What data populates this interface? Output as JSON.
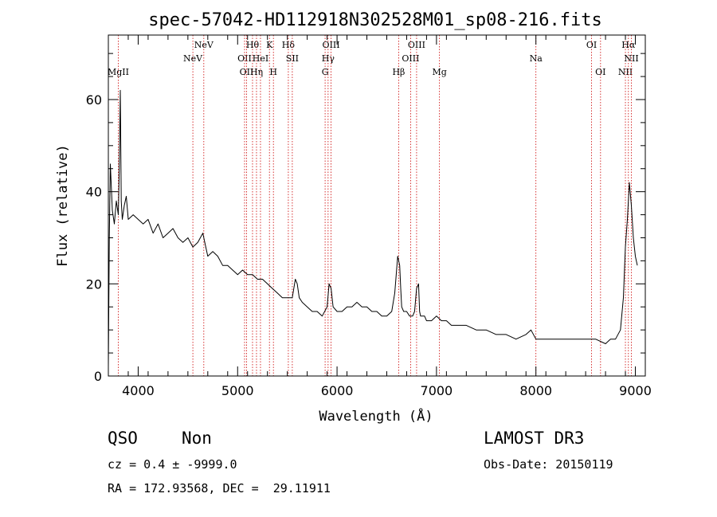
{
  "chart_data": {
    "type": "line",
    "title": "spec-57042-HD112918N302528M01_sp08-216.fits",
    "xlabel": "Wavelength (Å)",
    "ylabel": "Flux (relative)",
    "xlim": [
      3700,
      9100
    ],
    "ylim": [
      0,
      74
    ],
    "xticks": [
      4000,
      5000,
      6000,
      7000,
      8000,
      9000
    ],
    "yticks": [
      0,
      20,
      40,
      60
    ],
    "grid": false,
    "series": [
      {
        "x": [
          3700,
          3710,
          3720,
          3740,
          3760,
          3780,
          3800,
          3810,
          3820,
          3830,
          3840,
          3860,
          3880,
          3900,
          3950,
          4000,
          4050,
          4100,
          4150,
          4200,
          4250,
          4300,
          4350,
          4400,
          4450,
          4500,
          4550,
          4600,
          4650,
          4680,
          4700,
          4750,
          4800,
          4850,
          4900,
          4950,
          5000,
          5050,
          5100,
          5150,
          5200,
          5250,
          5300,
          5350,
          5400,
          5450,
          5500,
          5550,
          5580,
          5600,
          5620,
          5650,
          5700,
          5750,
          5800,
          5850,
          5900,
          5920,
          5940,
          5960,
          6000,
          6050,
          6100,
          6150,
          6200,
          6250,
          6300,
          6350,
          6400,
          6450,
          6500,
          6550,
          6580,
          6610,
          6630,
          6640,
          6650,
          6670,
          6700,
          6730,
          6760,
          6780,
          6800,
          6820,
          6830,
          6840,
          6860,
          6880,
          6900,
          6950,
          7000,
          7050,
          7100,
          7150,
          7200,
          7300,
          7400,
          7500,
          7600,
          7700,
          7800,
          7900,
          7950,
          8000,
          8050,
          8100,
          8200,
          8300,
          8400,
          8500,
          8600,
          8700,
          8750,
          8800,
          8850,
          8880,
          8900,
          8920,
          8940,
          8960,
          8980,
          9000,
          9020
        ],
        "y": [
          2,
          30,
          46,
          36,
          33,
          38,
          35,
          45,
          62,
          38,
          34,
          37,
          39,
          34,
          35,
          34,
          33,
          34,
          31,
          33,
          30,
          31,
          32,
          30,
          29,
          30,
          28,
          29,
          31,
          28,
          26,
          27,
          26,
          24,
          24,
          23,
          22,
          23,
          22,
          22,
          21,
          21,
          20,
          19,
          18,
          17,
          17,
          17,
          21,
          20,
          17,
          16,
          15,
          14,
          14,
          13,
          15,
          20,
          19,
          15,
          14,
          14,
          15,
          15,
          16,
          15,
          15,
          14,
          14,
          13,
          13,
          14,
          18,
          26,
          24,
          19,
          15,
          14,
          14,
          13,
          13,
          14,
          19,
          20,
          14,
          13,
          13,
          13,
          12,
          12,
          13,
          12,
          12,
          11,
          11,
          11,
          10,
          10,
          9,
          9,
          8,
          9,
          10,
          8,
          8,
          8,
          8,
          8,
          8,
          8,
          8,
          7,
          8,
          8,
          10,
          17,
          28,
          34,
          42,
          37,
          30,
          26,
          24
        ]
      }
    ],
    "lines": [
      {
        "label": "MgII",
        "x": 3800,
        "row": 3
      },
      {
        "label": "NeV",
        "x": 4550,
        "row": 2
      },
      {
        "label": "NeV",
        "x": 4660,
        "row": 1
      },
      {
        "label": "OII",
        "x": 5070,
        "row": 2
      },
      {
        "label": "OII",
        "x": 5090,
        "row": 3
      },
      {
        "label": "Hθ",
        "x": 5150,
        "row": 1
      },
      {
        "label": "Hη",
        "x": 5190,
        "row": 3
      },
      {
        "label": "HeI",
        "x": 5230,
        "row": 2
      },
      {
        "label": "K",
        "x": 5320,
        "row": 1
      },
      {
        "label": "H",
        "x": 5360,
        "row": 3
      },
      {
        "label": "Hδ",
        "x": 5510,
        "row": 1
      },
      {
        "label": "SII",
        "x": 5550,
        "row": 2
      },
      {
        "label": "G",
        "x": 5880,
        "row": 3
      },
      {
        "label": "Hγ",
        "x": 5910,
        "row": 2
      },
      {
        "label": "OIII",
        "x": 5940,
        "row": 1
      },
      {
        "label": "Hβ",
        "x": 6620,
        "row": 3
      },
      {
        "label": "OIII",
        "x": 6740,
        "row": 2
      },
      {
        "label": "OIII",
        "x": 6800,
        "row": 1
      },
      {
        "label": "Mg",
        "x": 7030,
        "row": 3
      },
      {
        "label": "Na",
        "x": 8000,
        "row": 2
      },
      {
        "label": "OI",
        "x": 8560,
        "row": 1
      },
      {
        "label": "OI",
        "x": 8650,
        "row": 3
      },
      {
        "label": "NII",
        "x": 8900,
        "row": 3
      },
      {
        "label": "Hα",
        "x": 8930,
        "row": 1
      },
      {
        "label": "NII",
        "x": 8960,
        "row": 2
      }
    ]
  },
  "info": {
    "class": "QSO",
    "subclass": "Non",
    "survey": "LAMOST DR3",
    "cz": "cz = 0.4 ± -9999.0",
    "obs_date": "Obs-Date: 20150119",
    "coords": "RA = 172.93568, DEC =  29.11911"
  },
  "colors": {
    "spectrum": "#000000",
    "marker_lines": "#cc0000",
    "axes": "#000000"
  }
}
